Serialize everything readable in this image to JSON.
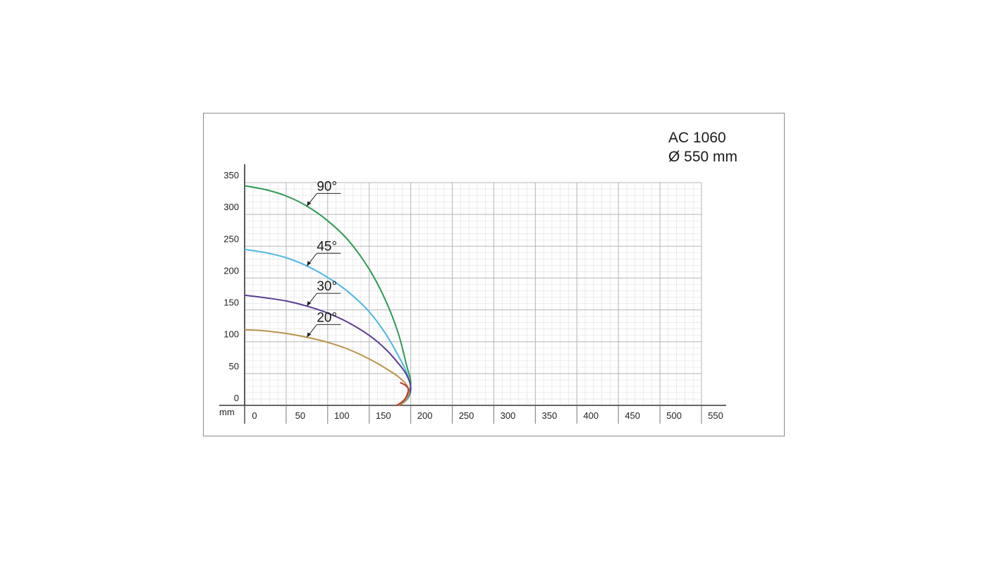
{
  "header": {
    "model": "AC 1060",
    "diameter": "Ø 550 mm"
  },
  "chart_data": {
    "type": "line",
    "title": "",
    "xlabel": "",
    "ylabel": "",
    "unit_label": "mm",
    "xlim": [
      0,
      550
    ],
    "ylim": [
      0,
      350
    ],
    "x_ticks": [
      0,
      50,
      100,
      150,
      200,
      250,
      300,
      350,
      400,
      450,
      500,
      550
    ],
    "y_ticks": [
      0,
      50,
      100,
      150,
      200,
      250,
      300,
      350
    ],
    "grid": true,
    "series": [
      {
        "name": "90°",
        "color": "#2e9a55",
        "x": [
          0,
          25,
          50,
          75,
          100,
          125,
          150,
          170,
          185,
          195,
          200,
          198,
          193,
          185
        ],
        "y": [
          345,
          339,
          329,
          313,
          290,
          259,
          214,
          164,
          113,
          63,
          38,
          20,
          8,
          0
        ]
      },
      {
        "name": "45°",
        "color": "#4db8e3",
        "x": [
          0,
          25,
          50,
          75,
          100,
          125,
          150,
          170,
          185,
          195,
          200,
          198,
          192,
          184
        ],
        "y": [
          245,
          240,
          232,
          219,
          201,
          178,
          147,
          112,
          78,
          52,
          28,
          14,
          5,
          0
        ]
      },
      {
        "name": "30°",
        "color": "#5b3c95",
        "x": [
          0,
          25,
          50,
          75,
          100,
          125,
          150,
          170,
          185,
          195,
          200,
          197,
          191,
          184
        ],
        "y": [
          173,
          169,
          164,
          156,
          145,
          130,
          110,
          88,
          66,
          48,
          28,
          14,
          5,
          0
        ]
      },
      {
        "name": "20°",
        "color": "#b8934a",
        "x": [
          0,
          25,
          50,
          75,
          100,
          125,
          150,
          170,
          185,
          195,
          198,
          195,
          190,
          184
        ],
        "y": [
          119,
          117,
          113,
          107,
          99,
          88,
          73,
          58,
          45,
          32,
          20,
          10,
          3,
          0
        ]
      },
      {
        "name": "",
        "color": "#c0392b",
        "x": [
          183,
          188,
          193,
          196,
          197,
          193,
          187
        ],
        "y": [
          0,
          4,
          10,
          18,
          26,
          32,
          36
        ]
      }
    ],
    "annotations": [
      {
        "text": "90°",
        "series": "90°",
        "x": 75,
        "y": 313
      },
      {
        "text": "45°",
        "series": "45°",
        "x": 75,
        "y": 219
      },
      {
        "text": "30°",
        "series": "30°",
        "x": 75,
        "y": 156
      },
      {
        "text": "20°",
        "series": "20°",
        "x": 75,
        "y": 107
      }
    ]
  }
}
